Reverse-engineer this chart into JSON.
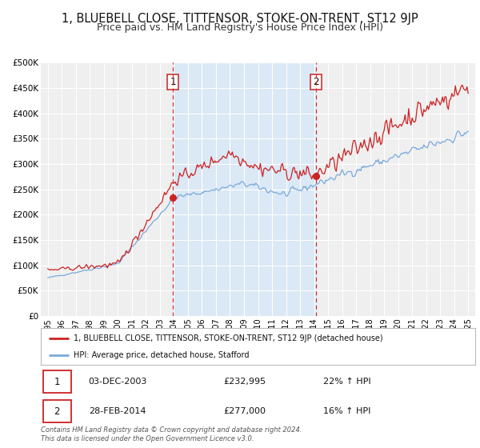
{
  "title": "1, BLUEBELL CLOSE, TITTENSOR, STOKE-ON-TRENT, ST12 9JP",
  "subtitle": "Price paid vs. HM Land Registry's House Price Index (HPI)",
  "bg_color": "#ffffff",
  "plot_bg_color": "#efefef",
  "shaded_region_color": "#dbe8f5",
  "red_line_color": "#cc2222",
  "blue_line_color": "#7aaadd",
  "grid_color": "#ffffff",
  "marker1_date_num": 2003.92,
  "marker1_red_y": 232995,
  "marker2_date_num": 2014.16,
  "marker2_red_y": 277000,
  "marker1_label": "1",
  "marker2_label": "2",
  "vline_color": "#cc3333",
  "ylim": [
    0,
    500000
  ],
  "xlim_left": 1994.5,
  "xlim_right": 2025.5,
  "yticks": [
    0,
    50000,
    100000,
    150000,
    200000,
    250000,
    300000,
    350000,
    400000,
    450000,
    500000
  ],
  "ytick_labels": [
    "£0",
    "£50K",
    "£100K",
    "£150K",
    "£200K",
    "£250K",
    "£300K",
    "£350K",
    "£400K",
    "£450K",
    "£500K"
  ],
  "xtick_years": [
    1995,
    1996,
    1997,
    1998,
    1999,
    2000,
    2001,
    2002,
    2003,
    2004,
    2005,
    2006,
    2007,
    2008,
    2009,
    2010,
    2011,
    2012,
    2013,
    2014,
    2015,
    2016,
    2017,
    2018,
    2019,
    2020,
    2021,
    2022,
    2023,
    2024,
    2025
  ],
  "legend_red_label": "1, BLUEBELL CLOSE, TITTENSOR, STOKE-ON-TRENT, ST12 9JP (detached house)",
  "legend_blue_label": "HPI: Average price, detached house, Stafford",
  "table_row1": [
    "1",
    "03-DEC-2003",
    "£232,995",
    "22% ↑ HPI"
  ],
  "table_row2": [
    "2",
    "28-FEB-2014",
    "£277,000",
    "16% ↑ HPI"
  ],
  "footnote": "Contains HM Land Registry data © Crown copyright and database right 2024.\nThis data is licensed under the Open Government Licence v3.0.",
  "title_fontsize": 10.5,
  "subtitle_fontsize": 9
}
